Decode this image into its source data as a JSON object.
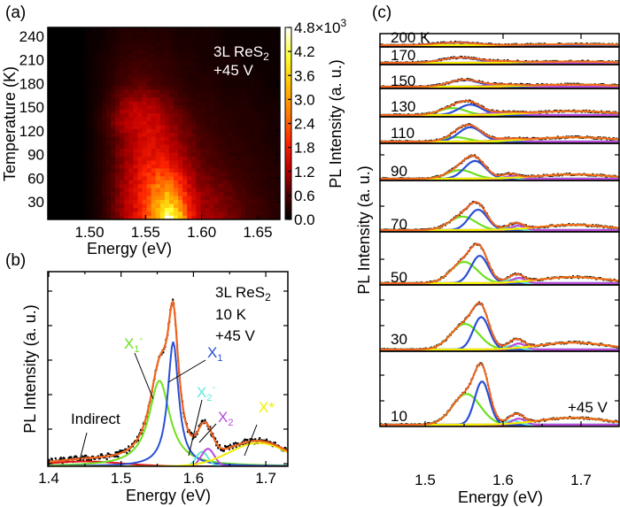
{
  "colors": {
    "X1": "#2a4fd6",
    "X1-": "#6ee01e",
    "X2-": "#5fe8d8",
    "X2": "#b84bdc",
    "X*": "#f2ee00",
    "Indirect": "#e3161c",
    "fit": "#f0641e",
    "data": "#000000"
  },
  "chart_data": [
    {
      "panel": "(a)",
      "type": "heatmap",
      "xlabel": "Energy (eV)",
      "ylabel": "Temperature (K)",
      "colorbar_label": "PL Intensity (a. u.)",
      "colorbar_ticks": [
        "0.0",
        "0.6",
        "1.2",
        "1.8",
        "2.4",
        "3.0",
        "3.6",
        "4.2",
        "4.8×10³"
      ],
      "colorbar_range": [
        0,
        4.8
      ],
      "colormap": "black-red-yellow-white",
      "xticks": [
        "1.50",
        "1.55",
        "1.60",
        "1.65"
      ],
      "yticks": [
        "30",
        "60",
        "90",
        "120",
        "150",
        "180",
        "210",
        "240"
      ],
      "xlim": [
        1.463,
        1.67
      ],
      "ylim": [
        8,
        250
      ],
      "annotation": {
        "line1": "3L ReS",
        "line1_sub": "2",
        "line2": "+45 V"
      },
      "energies": [
        1.47,
        1.48,
        1.49,
        1.5,
        1.51,
        1.52,
        1.53,
        1.54,
        1.55,
        1.56,
        1.57,
        1.58,
        1.59,
        1.6,
        1.61,
        1.62,
        1.63,
        1.64,
        1.65,
        1.66,
        1.67
      ],
      "temperatures": [
        10,
        30,
        50,
        70,
        90,
        110,
        130,
        150,
        180,
        210,
        240
      ],
      "intensity_1e3": [
        [
          0,
          0,
          0,
          0.1,
          0.3,
          0.7,
          1.1,
          1.5,
          2.2,
          3.2,
          4.6,
          3.6,
          1.9,
          1.2,
          1.1,
          1.0,
          0.8,
          0.6,
          0.5,
          0.4,
          0.3
        ],
        [
          0,
          0,
          0,
          0.1,
          0.3,
          0.7,
          1.1,
          1.5,
          2.1,
          3.0,
          3.6,
          2.8,
          1.6,
          1.1,
          1.0,
          0.9,
          0.7,
          0.6,
          0.5,
          0.4,
          0.3
        ],
        [
          0,
          0,
          0,
          0.1,
          0.3,
          0.7,
          1.1,
          1.5,
          2.0,
          2.6,
          2.8,
          2.2,
          1.4,
          1.0,
          0.9,
          0.8,
          0.6,
          0.5,
          0.4,
          0.3,
          0.3
        ],
        [
          0,
          0,
          0,
          0.1,
          0.3,
          0.6,
          1.0,
          1.4,
          1.8,
          2.1,
          2.0,
          1.6,
          1.1,
          0.8,
          0.7,
          0.6,
          0.5,
          0.4,
          0.4,
          0.3,
          0.3
        ],
        [
          0,
          0,
          0,
          0.1,
          0.3,
          0.6,
          1.0,
          1.3,
          1.6,
          1.7,
          1.5,
          1.2,
          0.9,
          0.7,
          0.6,
          0.5,
          0.4,
          0.4,
          0.3,
          0.3,
          0.2
        ],
        [
          0,
          0,
          0,
          0.1,
          0.3,
          0.6,
          0.9,
          1.2,
          1.5,
          1.5,
          1.3,
          1.0,
          0.8,
          0.6,
          0.5,
          0.4,
          0.4,
          0.3,
          0.3,
          0.2,
          0.2
        ],
        [
          0,
          0,
          0,
          0.1,
          0.4,
          0.8,
          1.2,
          1.4,
          1.5,
          1.4,
          1.1,
          0.9,
          0.7,
          0.5,
          0.4,
          0.4,
          0.3,
          0.3,
          0.3,
          0.2,
          0.2
        ],
        [
          0,
          0,
          0,
          0.1,
          0.3,
          0.7,
          1.1,
          1.3,
          1.3,
          1.2,
          0.9,
          0.7,
          0.5,
          0.4,
          0.4,
          0.3,
          0.3,
          0.3,
          0.2,
          0.2,
          0.2
        ],
        [
          0,
          0,
          0,
          0.1,
          0.2,
          0.4,
          0.6,
          0.7,
          0.7,
          0.6,
          0.5,
          0.4,
          0.3,
          0.3,
          0.3,
          0.2,
          0.2,
          0.2,
          0.2,
          0.1,
          0.1
        ],
        [
          0,
          0,
          0,
          0.1,
          0.2,
          0.3,
          0.4,
          0.5,
          0.5,
          0.4,
          0.4,
          0.3,
          0.3,
          0.2,
          0.2,
          0.2,
          0.2,
          0.1,
          0.1,
          0.1,
          0.1
        ],
        [
          0,
          0,
          0,
          0.1,
          0.1,
          0.2,
          0.3,
          0.3,
          0.3,
          0.3,
          0.3,
          0.2,
          0.2,
          0.2,
          0.2,
          0.1,
          0.1,
          0.1,
          0.1,
          0.1,
          0.1
        ]
      ]
    },
    {
      "panel": "(b)",
      "type": "line",
      "xlabel": "Energy (eV)",
      "ylabel": "PL Intensity (a. u.)",
      "xticks": [
        "1.4",
        "1.5",
        "1.6",
        "1.7"
      ],
      "xlim": [
        1.4,
        1.73
      ],
      "ylim": [
        0,
        1
      ],
      "annotation": {
        "line1": "3L ReS",
        "line1_sub": "2",
        "line2": "10 K",
        "line3": "+45 V"
      },
      "labels": {
        "X1-": {
          "base": "X",
          "sub": "1",
          "sup": "-"
        },
        "X1": {
          "base": "X",
          "sub": "1"
        },
        "X2-": {
          "base": "X",
          "sub": "2",
          "sup": "-"
        },
        "X2": {
          "base": "X",
          "sub": "2"
        },
        "X*": {
          "base": "X*"
        },
        "Indirect": {
          "base": "Indirect"
        }
      },
      "components": [
        {
          "name": "Indirect",
          "profile": "gaussian",
          "center": 1.45,
          "fwhm": 0.12,
          "amplitude": 0.025
        },
        {
          "name": "X1-",
          "profile": "lorentzian",
          "center": 1.553,
          "fwhm": 0.035,
          "amplitude": 0.44
        },
        {
          "name": "X1",
          "profile": "lorentzian",
          "center": 1.572,
          "fwhm": 0.018,
          "amplitude": 0.64
        },
        {
          "name": "X2-",
          "profile": "gaussian",
          "center": 1.612,
          "fwhm": 0.019,
          "amplitude": 0.075
        },
        {
          "name": "X2",
          "profile": "gaussian",
          "center": 1.62,
          "fwhm": 0.021,
          "amplitude": 0.09
        },
        {
          "name": "X*",
          "profile": "gaussian",
          "center": 1.69,
          "fwhm": 0.094,
          "amplitude": 0.12
        }
      ]
    },
    {
      "panel": "(c)",
      "type": "line",
      "xlabel": "Energy (eV)",
      "ylabel": "PL Intensity (a. u.)",
      "xticks": [
        "1.5",
        "1.6",
        "1.7"
      ],
      "xlim": [
        1.442,
        1.748
      ],
      "annotation": "+45 V",
      "spectra": [
        {
          "label": "200 K",
          "components": [
            {
              "name": "X1",
              "profile": "gaussian",
              "center": 1.54,
              "fwhm": 0.06,
              "amplitude": 0.06
            },
            {
              "name": "X*",
              "profile": "gaussian",
              "center": 1.69,
              "fwhm": 0.12,
              "amplitude": 0.02
            }
          ]
        },
        {
          "label": "170",
          "components": [
            {
              "name": "X1",
              "profile": "gaussian",
              "center": 1.545,
              "fwhm": 0.055,
              "amplitude": 0.12
            },
            {
              "name": "X2",
              "profile": "gaussian",
              "center": 1.6,
              "fwhm": 0.05,
              "amplitude": 0.03
            },
            {
              "name": "X*",
              "profile": "gaussian",
              "center": 1.69,
              "fwhm": 0.12,
              "amplitude": 0.03
            }
          ]
        },
        {
          "label": "150",
          "components": [
            {
              "name": "X1",
              "profile": "gaussian",
              "center": 1.55,
              "fwhm": 0.045,
              "amplitude": 0.16
            },
            {
              "name": "X2",
              "profile": "gaussian",
              "center": 1.6,
              "fwhm": 0.05,
              "amplitude": 0.04
            },
            {
              "name": "X*",
              "profile": "gaussian",
              "center": 1.69,
              "fwhm": 0.12,
              "amplitude": 0.05
            }
          ]
        },
        {
          "label": "130",
          "components": [
            {
              "name": "X1-",
              "profile": "gaussian",
              "center": 1.535,
              "fwhm": 0.04,
              "amplitude": 0.16
            },
            {
              "name": "X1",
              "profile": "gaussian",
              "center": 1.558,
              "fwhm": 0.035,
              "amplitude": 0.24
            },
            {
              "name": "X2",
              "profile": "gaussian",
              "center": 1.6,
              "fwhm": 0.05,
              "amplitude": 0.05
            },
            {
              "name": "X*",
              "profile": "gaussian",
              "center": 1.69,
              "fwhm": 0.12,
              "amplitude": 0.09
            }
          ]
        },
        {
          "label": "110",
          "components": [
            {
              "name": "X1-",
              "profile": "gaussian",
              "center": 1.54,
              "fwhm": 0.035,
              "amplitude": 0.1
            },
            {
              "name": "X1",
              "profile": "gaussian",
              "center": 1.558,
              "fwhm": 0.035,
              "amplitude": 0.33
            },
            {
              "name": "X2",
              "profile": "gaussian",
              "center": 1.605,
              "fwhm": 0.04,
              "amplitude": 0.05
            },
            {
              "name": "X*",
              "profile": "gaussian",
              "center": 1.69,
              "fwhm": 0.12,
              "amplitude": 0.1
            }
          ]
        },
        {
          "label": "90",
          "components": [
            {
              "name": "X1-",
              "profile": "gaussian",
              "center": 1.545,
              "fwhm": 0.04,
              "amplitude": 0.2
            },
            {
              "name": "X1",
              "profile": "gaussian",
              "center": 1.564,
              "fwhm": 0.032,
              "amplitude": 0.41
            },
            {
              "name": "X2-",
              "profile": "gaussian",
              "center": 1.605,
              "fwhm": 0.02,
              "amplitude": 0.04
            },
            {
              "name": "X2",
              "profile": "gaussian",
              "center": 1.612,
              "fwhm": 0.02,
              "amplitude": 0.06
            },
            {
              "name": "X*",
              "profile": "gaussian",
              "center": 1.69,
              "fwhm": 0.11,
              "amplitude": 0.1
            }
          ]
        },
        {
          "label": "70",
          "components": [
            {
              "name": "X1-",
              "profile": "gaussian",
              "center": 1.548,
              "fwhm": 0.04,
              "amplitude": 0.31
            },
            {
              "name": "X1",
              "profile": "gaussian",
              "center": 1.568,
              "fwhm": 0.028,
              "amplitude": 0.47
            },
            {
              "name": "X2-",
              "profile": "gaussian",
              "center": 1.61,
              "fwhm": 0.02,
              "amplitude": 0.06
            },
            {
              "name": "X2",
              "profile": "gaussian",
              "center": 1.619,
              "fwhm": 0.02,
              "amplitude": 0.1
            },
            {
              "name": "X*",
              "profile": "gaussian",
              "center": 1.69,
              "fwhm": 0.1,
              "amplitude": 0.12
            }
          ]
        },
        {
          "label": "50",
          "components": [
            {
              "name": "X1-",
              "profile": "gaussian",
              "center": 1.55,
              "fwhm": 0.04,
              "amplitude": 0.49
            },
            {
              "name": "X1",
              "profile": "gaussian",
              "center": 1.57,
              "fwhm": 0.026,
              "amplitude": 0.63
            },
            {
              "name": "X2-",
              "profile": "gaussian",
              "center": 1.611,
              "fwhm": 0.02,
              "amplitude": 0.08
            },
            {
              "name": "X2",
              "profile": "gaussian",
              "center": 1.62,
              "fwhm": 0.02,
              "amplitude": 0.12
            },
            {
              "name": "X*",
              "profile": "gaussian",
              "center": 1.69,
              "fwhm": 0.1,
              "amplitude": 0.14
            }
          ]
        },
        {
          "label": "30",
          "components": [
            {
              "name": "X1-",
              "profile": "gaussian",
              "center": 1.551,
              "fwhm": 0.042,
              "amplitude": 0.59
            },
            {
              "name": "X1",
              "profile": "gaussian",
              "center": 1.572,
              "fwhm": 0.024,
              "amplitude": 0.75
            },
            {
              "name": "X2-",
              "profile": "gaussian",
              "center": 1.612,
              "fwhm": 0.02,
              "amplitude": 0.09
            },
            {
              "name": "X2",
              "profile": "gaussian",
              "center": 1.62,
              "fwhm": 0.02,
              "amplitude": 0.14
            },
            {
              "name": "X*",
              "profile": "gaussian",
              "center": 1.69,
              "fwhm": 0.1,
              "amplitude": 0.16
            }
          ]
        },
        {
          "label": "10",
          "components": [
            {
              "name": "X1-",
              "profile": "gaussian",
              "center": 1.553,
              "fwhm": 0.042,
              "amplitude": 0.71
            },
            {
              "name": "X1",
              "profile": "gaussian",
              "center": 1.573,
              "fwhm": 0.022,
              "amplitude": 1.0
            },
            {
              "name": "X2-",
              "profile": "gaussian",
              "center": 1.612,
              "fwhm": 0.02,
              "amplitude": 0.1
            },
            {
              "name": "X2",
              "profile": "gaussian",
              "center": 1.62,
              "fwhm": 0.02,
              "amplitude": 0.14
            },
            {
              "name": "X*",
              "profile": "gaussian",
              "center": 1.69,
              "fwhm": 0.1,
              "amplitude": 0.16
            }
          ]
        }
      ]
    }
  ]
}
